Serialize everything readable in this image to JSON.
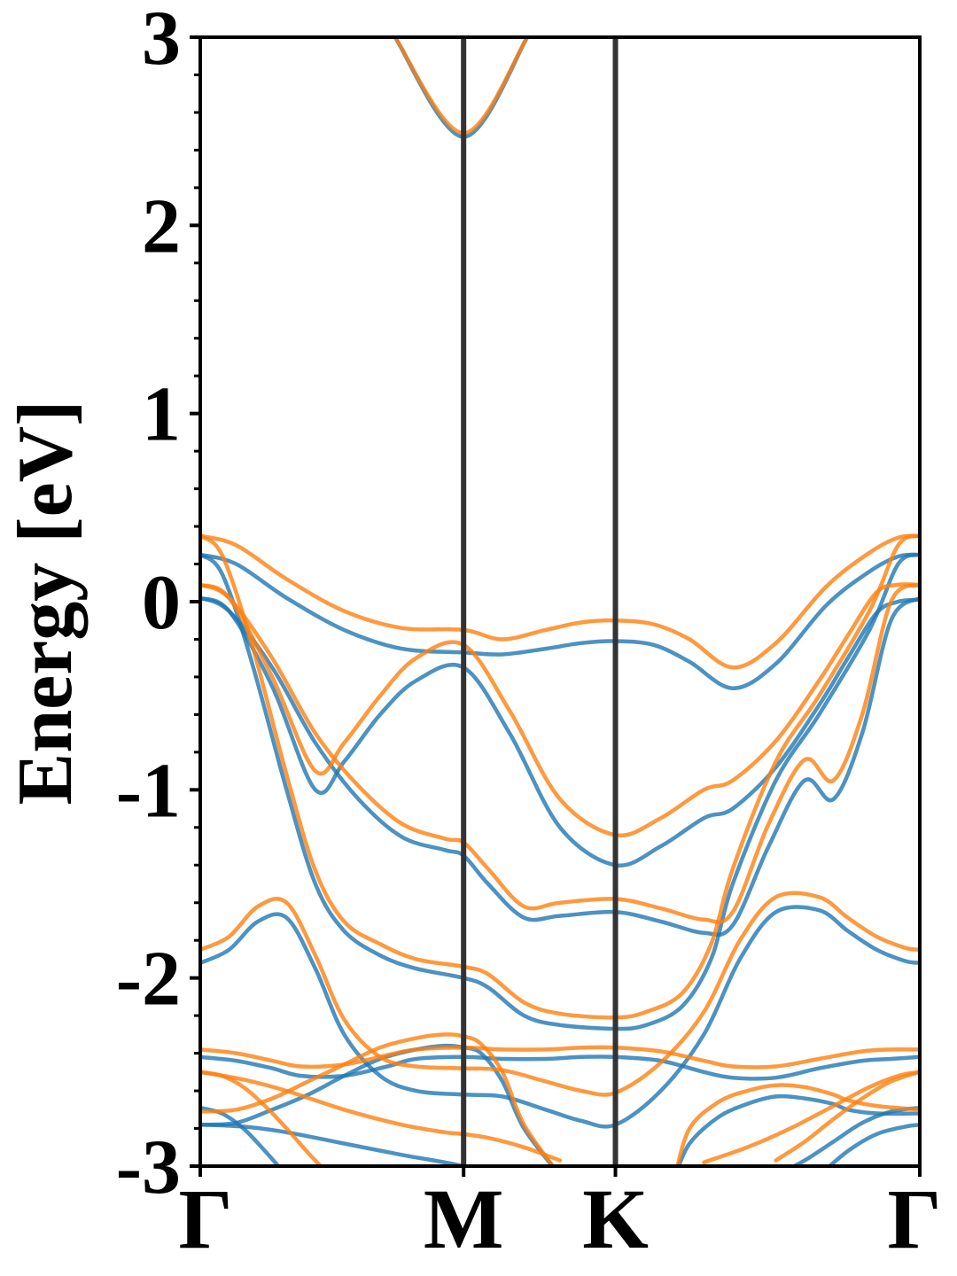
{
  "chart_data": {
    "type": "line",
    "title": "",
    "xlabel": "",
    "ylabel": "Energy [eV]",
    "ylim": [
      -3,
      3
    ],
    "xlim": [
      0,
      1
    ],
    "grid": false,
    "y_ticks": [
      {
        "value": 3,
        "label": "3"
      },
      {
        "value": 2,
        "label": "2"
      },
      {
        "value": 1,
        "label": "1"
      },
      {
        "value": 0,
        "label": "0"
      },
      {
        "value": -1,
        "label": "-1"
      },
      {
        "value": -2,
        "label": "-2"
      },
      {
        "value": -3,
        "label": "-3"
      }
    ],
    "x_ticks": [
      {
        "value": 0.0,
        "label": "Γ"
      },
      {
        "value": 0.366,
        "label": "M"
      },
      {
        "value": 0.577,
        "label": "K"
      },
      {
        "value": 1.0,
        "label": "Γ"
      }
    ],
    "vlines": [
      0.366,
      0.577
    ],
    "colors": {
      "series_1": "#1f77b4",
      "series_2": "#ff7f0e",
      "vline": "#333333"
    },
    "series": [
      {
        "color": "#1f77b4",
        "bands": [
          {
            "x": [
              0.2707,
              0.366,
              0.4546
            ],
            "y": [
              3.0,
              2.47,
              3.0
            ]
          },
          {
            "x": [
              0,
              0.05,
              0.12,
              0.2,
              0.28,
              0.366,
              0.42,
              0.48,
              0.53,
              0.577,
              0.63,
              0.68,
              0.74,
              0.8,
              0.87,
              0.93,
              0.97,
              1.0
            ],
            "y": [
              0.25,
              0.2,
              0.02,
              -0.15,
              -0.25,
              -0.27,
              -0.28,
              -0.25,
              -0.22,
              -0.21,
              -0.23,
              -0.32,
              -0.46,
              -0.33,
              -0.02,
              0.16,
              0.24,
              0.25
            ]
          },
          {
            "x": [
              0,
              0.04,
              0.1,
              0.16,
              0.2,
              0.25,
              0.3,
              0.366,
              0.43,
              0.5,
              0.577,
              0.64,
              0.7,
              0.74,
              0.8,
              0.86,
              0.9,
              0.94,
              0.97,
              1.0
            ],
            "y": [
              0.02,
              -0.05,
              -0.45,
              -1.0,
              -0.85,
              -0.6,
              -0.42,
              -0.35,
              -0.7,
              -1.2,
              -1.4,
              -1.3,
              -1.15,
              -1.1,
              -0.88,
              -0.55,
              -0.3,
              -0.06,
              0.0,
              0.01
            ]
          },
          {
            "x": [
              0,
              0.04,
              0.1,
              0.16,
              0.22,
              0.28,
              0.34,
              0.366,
              0.4,
              0.45,
              0.5,
              0.577,
              0.64,
              0.7,
              0.74,
              0.79,
              0.84,
              0.88,
              0.92,
              0.96,
              1.0
            ],
            "y": [
              0.02,
              -0.05,
              -0.35,
              -0.75,
              -1.05,
              -1.25,
              -1.32,
              -1.35,
              -1.5,
              -1.68,
              -1.67,
              -1.65,
              -1.7,
              -1.76,
              -1.72,
              -1.3,
              -0.95,
              -1.05,
              -0.7,
              -0.1,
              0.02
            ]
          },
          {
            "x": [
              0,
              0.03,
              0.07,
              0.12,
              0.16,
              0.2,
              0.25,
              0.3,
              0.366,
              0.4,
              0.45,
              0.5,
              0.577,
              0.62,
              0.67,
              0.71,
              0.74,
              0.8,
              0.86,
              0.93,
              0.97,
              1.0
            ],
            "y": [
              0.25,
              0.15,
              -0.3,
              -1.0,
              -1.5,
              -1.75,
              -1.88,
              -1.95,
              -2.0,
              -2.05,
              -2.2,
              -2.25,
              -2.27,
              -2.25,
              -2.15,
              -1.9,
              -1.5,
              -0.95,
              -0.6,
              -0.15,
              0.2,
              0.25
            ]
          },
          {
            "x": [
              0,
              0.04,
              0.08,
              0.12,
              0.16,
              0.2,
              0.25,
              0.3,
              0.366,
              0.42,
              0.48,
              0.53,
              0.577,
              0.64,
              0.7,
              0.75,
              0.8,
              0.86,
              0.9,
              0.94,
              0.98,
              1.0
            ],
            "y": [
              -1.92,
              -1.85,
              -1.7,
              -1.68,
              -1.95,
              -2.3,
              -2.52,
              -2.6,
              -2.62,
              -2.63,
              -2.7,
              -2.76,
              -2.78,
              -2.6,
              -2.3,
              -1.9,
              -1.65,
              -1.64,
              -1.75,
              -1.85,
              -1.91,
              -1.92
            ]
          },
          {
            "x": [
              0,
              0.05,
              0.1,
              0.14,
              0.2,
              0.26,
              0.3,
              0.366,
              0.42,
              0.48,
              0.53,
              0.577,
              0.64,
              0.7,
              0.74,
              0.8,
              0.86,
              0.92,
              0.96,
              1.0
            ],
            "y": [
              -2.42,
              -2.44,
              -2.48,
              -2.52,
              -2.52,
              -2.47,
              -2.43,
              -2.42,
              -2.43,
              -2.43,
              -2.42,
              -2.42,
              -2.44,
              -2.5,
              -2.53,
              -2.53,
              -2.48,
              -2.44,
              -2.43,
              -2.42
            ]
          },
          {
            "x": [
              0,
              0.05,
              0.1,
              0.15,
              0.2,
              0.25,
              0.3,
              0.34,
              0.366,
              0.39,
              0.42,
              0.45,
              0.5
            ],
            "y": [
              -2.78,
              -2.77,
              -2.7,
              -2.62,
              -2.52,
              -2.43,
              -2.38,
              -2.36,
              -2.37,
              -2.4,
              -2.55,
              -2.8,
              -3.05
            ]
          },
          {
            "x": [
              0,
              0.03,
              0.06,
              0.09,
              0.12
            ],
            "y": [
              -2.69,
              -2.72,
              -2.8,
              -2.92,
              -3.05
            ]
          },
          {
            "x": [
              0,
              0.06,
              0.12,
              0.2,
              0.28,
              0.34,
              0.366
            ],
            "y": [
              -2.78,
              -2.79,
              -2.82,
              -2.88,
              -2.94,
              -2.98,
              -3.0
            ]
          },
          {
            "x": [
              0.66,
              0.68,
              0.72,
              0.76,
              0.8,
              0.84,
              0.88,
              0.9,
              0.94,
              1.0
            ],
            "y": [
              -3.05,
              -2.88,
              -2.74,
              -2.67,
              -2.63,
              -2.64,
              -2.67,
              -2.7,
              -2.72,
              -2.72
            ]
          },
          {
            "x": [
              0.8,
              0.84,
              0.88,
              0.92,
              0.96,
              1.0
            ],
            "y": [
              -3.05,
              -2.97,
              -2.87,
              -2.77,
              -2.71,
              -2.69
            ]
          },
          {
            "x": [
              0.86,
              0.9,
              0.94,
              0.98,
              1.0
            ],
            "y": [
              -3.05,
              -2.92,
              -2.83,
              -2.79,
              -2.78
            ]
          }
        ]
      },
      {
        "color": "#ff7f0e",
        "bands": [
          {
            "x": [
              0.2707,
              0.366,
              0.4546
            ],
            "y": [
              3.0,
              2.49,
              3.0
            ]
          },
          {
            "x": [
              0,
              0.05,
              0.12,
              0.2,
              0.28,
              0.366,
              0.42,
              0.48,
              0.53,
              0.577,
              0.63,
              0.68,
              0.74,
              0.8,
              0.87,
              0.93,
              0.97,
              1.0
            ],
            "y": [
              0.35,
              0.3,
              0.12,
              -0.05,
              -0.14,
              -0.15,
              -0.2,
              -0.15,
              -0.11,
              -0.1,
              -0.12,
              -0.2,
              -0.35,
              -0.22,
              0.08,
              0.26,
              0.34,
              0.35
            ]
          },
          {
            "x": [
              0,
              0.04,
              0.1,
              0.16,
              0.2,
              0.25,
              0.3,
              0.366,
              0.43,
              0.5,
              0.577,
              0.64,
              0.7,
              0.74,
              0.8,
              0.86,
              0.9,
              0.94,
              0.97,
              1.0
            ],
            "y": [
              0.09,
              0.02,
              -0.4,
              -0.9,
              -0.75,
              -0.5,
              -0.3,
              -0.23,
              -0.58,
              -1.05,
              -1.24,
              -1.15,
              -1.0,
              -0.95,
              -0.74,
              -0.42,
              -0.18,
              0.05,
              0.09,
              0.09
            ]
          },
          {
            "x": [
              0,
              0.04,
              0.1,
              0.16,
              0.22,
              0.28,
              0.34,
              0.366,
              0.4,
              0.45,
              0.5,
              0.577,
              0.64,
              0.7,
              0.74,
              0.79,
              0.84,
              0.88,
              0.92,
              0.96,
              1.0
            ],
            "y": [
              0.09,
              0.02,
              -0.3,
              -0.7,
              -0.98,
              -1.18,
              -1.26,
              -1.28,
              -1.42,
              -1.62,
              -1.6,
              -1.58,
              -1.63,
              -1.69,
              -1.65,
              -1.18,
              -0.84,
              -0.95,
              -0.6,
              0.0,
              0.09
            ]
          },
          {
            "x": [
              0,
              0.03,
              0.07,
              0.12,
              0.16,
              0.2,
              0.25,
              0.3,
              0.366,
              0.4,
              0.45,
              0.5,
              0.577,
              0.62,
              0.67,
              0.71,
              0.74,
              0.8,
              0.86,
              0.93,
              0.97,
              1.0
            ],
            "y": [
              0.35,
              0.25,
              -0.2,
              -0.92,
              -1.43,
              -1.7,
              -1.82,
              -1.9,
              -1.94,
              -1.98,
              -2.13,
              -2.19,
              -2.21,
              -2.18,
              -2.08,
              -1.82,
              -1.42,
              -0.85,
              -0.5,
              -0.05,
              0.3,
              0.35
            ]
          },
          {
            "x": [
              0,
              0.04,
              0.08,
              0.12,
              0.16,
              0.2,
              0.25,
              0.3,
              0.366,
              0.42,
              0.48,
              0.53,
              0.577,
              0.64,
              0.7,
              0.75,
              0.8,
              0.86,
              0.9,
              0.94,
              0.98,
              1.0
            ],
            "y": [
              -1.85,
              -1.78,
              -1.62,
              -1.6,
              -1.88,
              -2.22,
              -2.42,
              -2.47,
              -2.48,
              -2.49,
              -2.55,
              -2.6,
              -2.61,
              -2.45,
              -2.18,
              -1.8,
              -1.57,
              -1.57,
              -1.68,
              -1.78,
              -1.84,
              -1.85
            ]
          },
          {
            "x": [
              0,
              0.05,
              0.1,
              0.14,
              0.2,
              0.26,
              0.3,
              0.366,
              0.42,
              0.48,
              0.53,
              0.577,
              0.64,
              0.7,
              0.74,
              0.8,
              0.86,
              0.92,
              0.96,
              1.0
            ],
            "y": [
              -2.38,
              -2.4,
              -2.44,
              -2.47,
              -2.46,
              -2.41,
              -2.38,
              -2.37,
              -2.38,
              -2.38,
              -2.37,
              -2.37,
              -2.39,
              -2.44,
              -2.47,
              -2.47,
              -2.43,
              -2.39,
              -2.38,
              -2.38
            ]
          },
          {
            "x": [
              0,
              0.05,
              0.1,
              0.15,
              0.2,
              0.25,
              0.3,
              0.34,
              0.366,
              0.39,
              0.42,
              0.45,
              0.5
            ],
            "y": [
              -2.71,
              -2.7,
              -2.64,
              -2.55,
              -2.46,
              -2.37,
              -2.32,
              -2.3,
              -2.31,
              -2.35,
              -2.5,
              -2.78,
              -3.05
            ]
          },
          {
            "x": [
              0,
              0.03,
              0.06,
              0.09,
              0.12,
              0.15,
              0.18
            ],
            "y": [
              -2.5,
              -2.52,
              -2.58,
              -2.68,
              -2.8,
              -2.93,
              -3.05
            ]
          },
          {
            "x": [
              0,
              0.06,
              0.12,
              0.2,
              0.28,
              0.34,
              0.366,
              0.4,
              0.45,
              0.5
            ],
            "y": [
              -2.5,
              -2.54,
              -2.6,
              -2.7,
              -2.78,
              -2.82,
              -2.83,
              -2.85,
              -2.9,
              -2.97
            ]
          },
          {
            "x": [
              0.66,
              0.68,
              0.72,
              0.76,
              0.8,
              0.84,
              0.88,
              0.9,
              0.94,
              1.0
            ],
            "y": [
              -3.05,
              -2.8,
              -2.66,
              -2.6,
              -2.57,
              -2.58,
              -2.62,
              -2.65,
              -2.68,
              -2.7
            ]
          },
          {
            "x": [
              0.8,
              0.84,
              0.88,
              0.92,
              0.96,
              1.0
            ],
            "y": [
              -2.97,
              -2.87,
              -2.75,
              -2.64,
              -2.55,
              -2.5
            ]
          },
          {
            "x": [
              0.7,
              0.76,
              0.82,
              0.88,
              0.93,
              0.97,
              1.0
            ],
            "y": [
              -2.98,
              -2.9,
              -2.8,
              -2.68,
              -2.58,
              -2.52,
              -2.5
            ]
          }
        ]
      }
    ]
  },
  "text": {
    "ylabel": "Energy [eV]"
  }
}
